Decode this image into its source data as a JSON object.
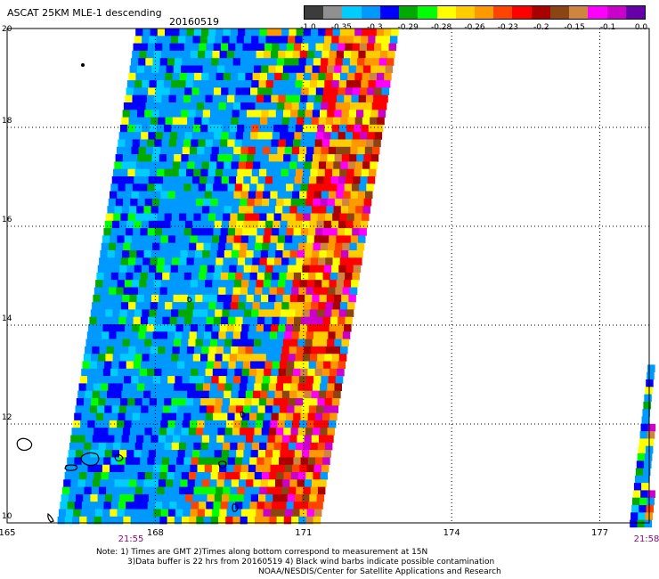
{
  "header": {
    "title": "ASCAT 25KM MLE-1 descending",
    "date": "20160519"
  },
  "colorbar": {
    "colors": [
      "#3c3c3c",
      "#909090",
      "#00ccff",
      "#0099ff",
      "#0000ff",
      "#00aa00",
      "#00ff00",
      "#ffff00",
      "#ffcc00",
      "#ff9900",
      "#ff4400",
      "#ff0000",
      "#aa0000",
      "#8b4513",
      "#cd853f",
      "#ff00ff",
      "#cc00cc",
      "#6600aa"
    ],
    "labels": [
      "-1.0",
      "-0.35",
      "-0.3",
      "-0.29",
      "-0.28",
      "-0.26",
      "-0.23",
      "-0.2",
      "-0.15",
      "-0.1",
      "0.0"
    ]
  },
  "axes": {
    "lat_ticks": [
      "20",
      "18",
      "16",
      "14",
      "12",
      "10"
    ],
    "lon_ticks": [
      "165",
      "168",
      "171",
      "174",
      "177"
    ],
    "lat_range": [
      10,
      20
    ],
    "lon_range": [
      165,
      178
    ]
  },
  "times": {
    "left": "21:55",
    "right": "21:58"
  },
  "notes": [
    "Note: 1) Times are GMT 2)Times along bottom correspond to measurement at 15N",
    "3)Data buffer is 22 hrs from 20160519 4) Black wind barbs indicate possible contamination",
    "NOAA/NESDIS/Center for Satellite Applications and Research"
  ],
  "swaths": [
    {
      "name": "main-swath",
      "corners": [
        [
          166.0,
          10.0
        ],
        [
          171.3,
          10.0
        ],
        [
          172.9,
          20.0
        ],
        [
          167.6,
          20.0
        ]
      ]
    },
    {
      "name": "east-swath",
      "corners": [
        [
          177.6,
          10.0
        ],
        [
          178.0,
          10.0
        ],
        [
          178.0,
          13.5
        ],
        [
          178.0,
          13.5
        ]
      ]
    }
  ]
}
